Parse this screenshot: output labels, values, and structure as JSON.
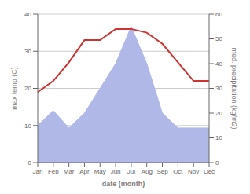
{
  "chart_data": {
    "type": "line",
    "categories": [
      "Jan",
      "Feb",
      "Mar",
      "Apr",
      "May",
      "Jun",
      "Jul",
      "Aug",
      "Sep",
      "Oct",
      "Nov",
      "Dec"
    ],
    "xlabel": "date (month)",
    "ylabel": "max temp (C)",
    "y2label": "med. precipitation (kg/m2)",
    "ylim": [
      0,
      40
    ],
    "yticks": [
      0,
      10,
      20,
      30,
      40
    ],
    "y2lim": [
      0,
      60
    ],
    "y2ticks": [
      0,
      10,
      20,
      30,
      40,
      50,
      60
    ],
    "grid": true,
    "series": [
      {
        "type": "area",
        "axis": "y2",
        "color": "#b0b8e8",
        "values": [
          15,
          21,
          14,
          20,
          30,
          40,
          55,
          40,
          20,
          14,
          14,
          14
        ]
      },
      {
        "type": "line",
        "color": "#cd3333",
        "values": [
          19,
          22,
          27,
          33,
          33,
          36,
          36,
          35,
          32,
          27,
          22,
          22
        ]
      }
    ]
  }
}
